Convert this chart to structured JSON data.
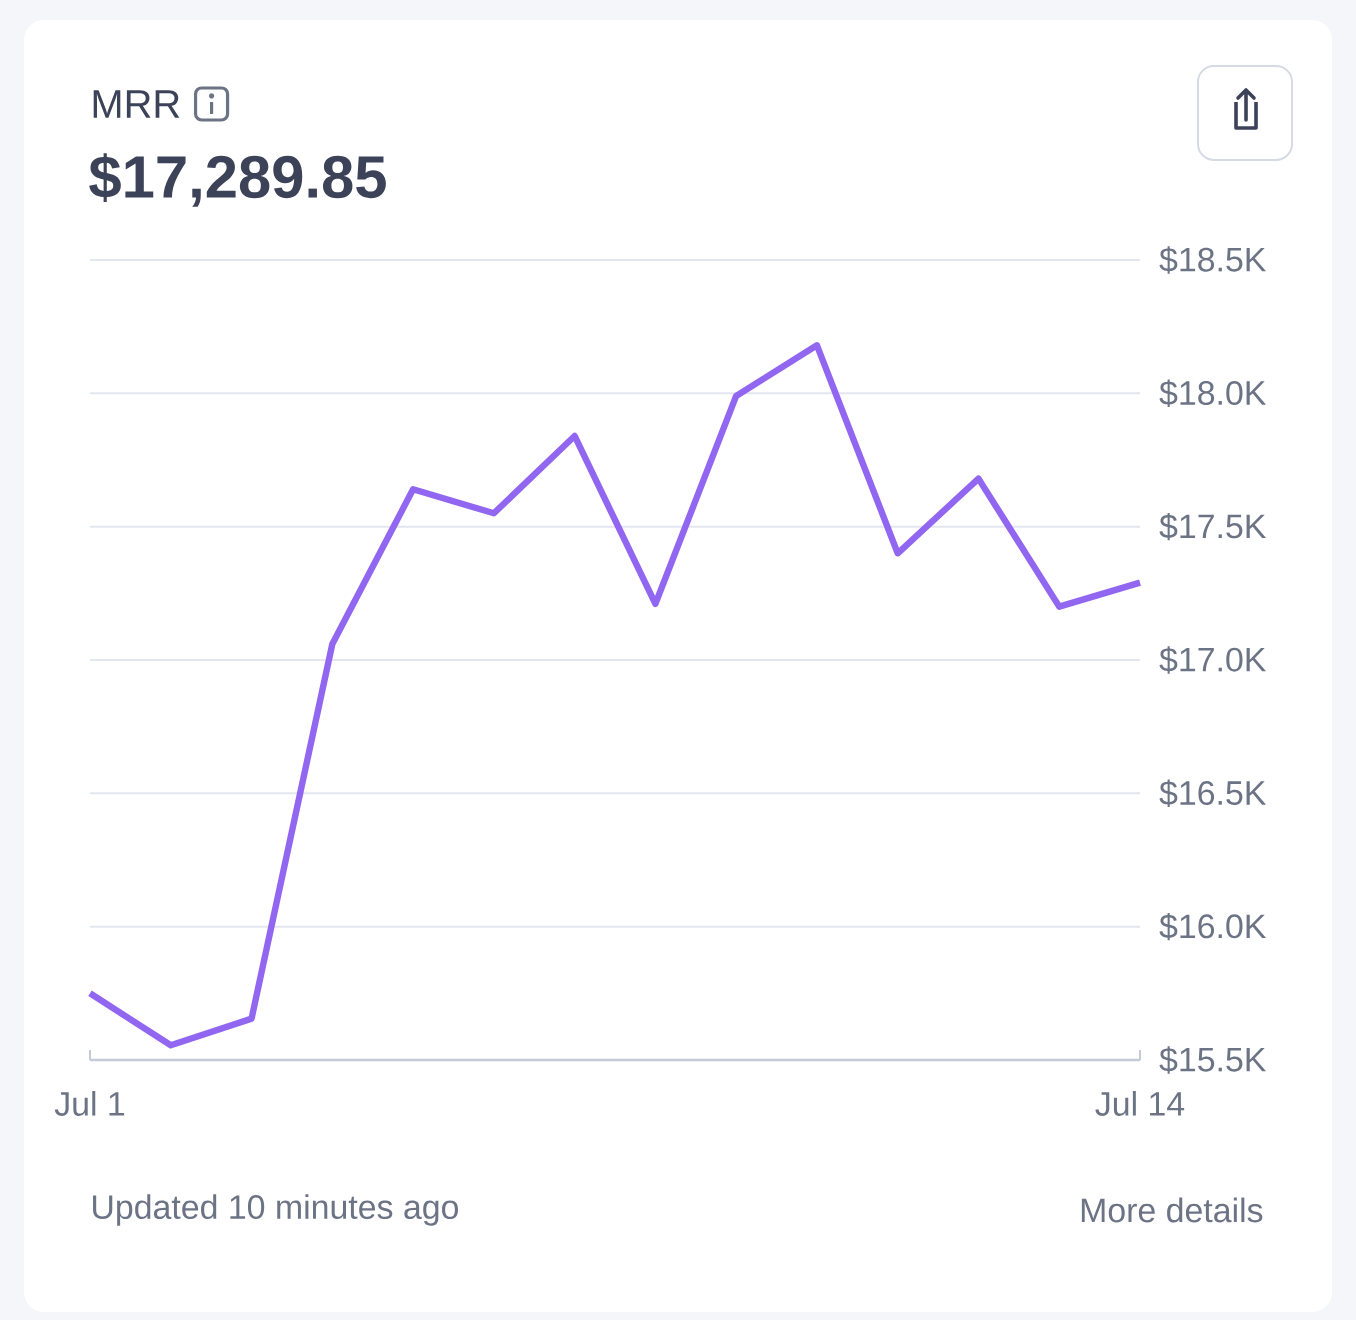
{
  "chart_data": {
    "type": "line",
    "title": "MRR",
    "subtitle": "$17,289.85",
    "categories": [
      "Jul 1",
      null,
      null,
      null,
      null,
      null,
      null,
      null,
      null,
      null,
      null,
      null,
      null,
      "Jul 14"
    ],
    "series": [
      {
        "color": "#9166f0",
        "values": [
          15750,
          15555,
          15655,
          17060,
          17640,
          17550,
          17840,
          17210,
          17990,
          18180,
          17400,
          17680,
          17200,
          17290
        ]
      }
    ],
    "ylim": [
      15500,
      18500
    ],
    "yticks": [
      {
        "value": 15500,
        "label": "$15.5K"
      },
      {
        "value": 16000,
        "label": "$16.0K"
      },
      {
        "value": 16500,
        "label": "$16.5K"
      },
      {
        "value": 17000,
        "label": "$17.0K"
      },
      {
        "value": 17500,
        "label": "$17.5K"
      },
      {
        "value": 18000,
        "label": "$18.0K"
      },
      {
        "value": 18500,
        "label": "$18.5K"
      }
    ],
    "grid": "y",
    "line_style": "solid",
    "annotations": [
      "Updated 10 minutes ago",
      "More details"
    ]
  }
}
